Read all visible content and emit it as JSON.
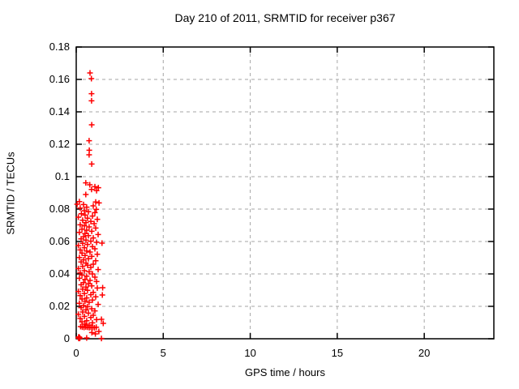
{
  "chart_data": {
    "type": "scatter",
    "title": "Day 210 of 2011, SRMTID for receiver p367",
    "xlabel": "GPS time / hours",
    "ylabel": "SRMTID / TECUs",
    "xlim": [
      0,
      24
    ],
    "ylim": [
      0,
      0.18
    ],
    "xticks": [
      {
        "v": 0,
        "label": "0"
      },
      {
        "v": 5,
        "label": "5"
      },
      {
        "v": 10,
        "label": "10"
      },
      {
        "v": 15,
        "label": "15"
      },
      {
        "v": 20,
        "label": "20"
      }
    ],
    "yticks": [
      {
        "v": 0,
        "label": "0"
      },
      {
        "v": 0.02,
        "label": "0.02"
      },
      {
        "v": 0.04,
        "label": "0.04"
      },
      {
        "v": 0.06,
        "label": "0.06"
      },
      {
        "v": 0.08,
        "label": "0.08"
      },
      {
        "v": 0.1,
        "label": "0.1"
      },
      {
        "v": 0.12,
        "label": "0.12"
      },
      {
        "v": 0.14,
        "label": "0.14"
      },
      {
        "v": 0.16,
        "label": "0.16"
      },
      {
        "v": 0.18,
        "label": "0.18"
      }
    ],
    "grid": "dashed, on major ticks",
    "legend": "none",
    "marker": "plus",
    "colors": {
      "marker": "#ff0000",
      "grid": "#a6a6a6",
      "frame": "#000000",
      "text": "#000000",
      "background": "#ffffff"
    },
    "points": [
      [
        0.79,
        0.164
      ],
      [
        0.87,
        0.1605
      ],
      [
        0.88,
        0.1512
      ],
      [
        0.88,
        0.1468
      ],
      [
        0.89,
        0.132
      ],
      [
        0.74,
        0.1222
      ],
      [
        0.75,
        0.1163
      ],
      [
        0.74,
        0.1135
      ],
      [
        0.89,
        0.1078
      ],
      [
        0.55,
        0.0962
      ],
      [
        0.78,
        0.095
      ],
      [
        1.07,
        0.0938
      ],
      [
        1.27,
        0.0932
      ],
      [
        0.88,
        0.0921
      ],
      [
        1.17,
        0.0914
      ],
      [
        0.55,
        0.089
      ],
      [
        0.18,
        0.0846
      ],
      [
        1.12,
        0.0844
      ],
      [
        1.31,
        0.0838
      ],
      [
        0.05,
        0.083
      ],
      [
        0.42,
        0.0828
      ],
      [
        0.98,
        0.082
      ],
      [
        0.6,
        0.0812
      ],
      [
        0.23,
        0.0806
      ],
      [
        1.15,
        0.0798
      ],
      [
        0.47,
        0.079
      ],
      [
        0.7,
        0.0784
      ],
      [
        1.07,
        0.0778
      ],
      [
        0.3,
        0.0771
      ],
      [
        0.51,
        0.0763
      ],
      [
        0.93,
        0.0757
      ],
      [
        0.12,
        0.075
      ],
      [
        0.65,
        0.0744
      ],
      [
        1.21,
        0.0737
      ],
      [
        0.37,
        0.0731
      ],
      [
        0.84,
        0.0724
      ],
      [
        0.56,
        0.0717
      ],
      [
        1.03,
        0.071
      ],
      [
        0.23,
        0.0703
      ],
      [
        0.47,
        0.0697
      ],
      [
        0.74,
        0.069
      ],
      [
        1.12,
        0.0683
      ],
      [
        0.33,
        0.0676
      ],
      [
        0.6,
        0.067
      ],
      [
        0.89,
        0.0663
      ],
      [
        0.18,
        0.0656
      ],
      [
        0.51,
        0.0649
      ],
      [
        1.26,
        0.0643
      ],
      [
        0.7,
        0.0636
      ],
      [
        0.42,
        0.0629
      ],
      [
        0.98,
        0.0622
      ],
      [
        0.28,
        0.0616
      ],
      [
        0.56,
        0.0609
      ],
      [
        0.84,
        0.0602
      ],
      [
        1.17,
        0.0595
      ],
      [
        0.37,
        0.0589
      ],
      [
        0.65,
        0.0582
      ],
      [
        0.12,
        0.0575
      ],
      [
        0.93,
        0.0568
      ],
      [
        0.47,
        0.0562
      ],
      [
        1.07,
        0.0555
      ],
      [
        0.23,
        0.0548
      ],
      [
        0.6,
        0.0541
      ],
      [
        0.79,
        0.0535
      ],
      [
        0.33,
        0.0528
      ],
      [
        1.21,
        0.0521
      ],
      [
        0.51,
        0.0514
      ],
      [
        0.89,
        0.0508
      ],
      [
        0.18,
        0.0501
      ],
      [
        0.7,
        0.0494
      ],
      [
        0.42,
        0.0487
      ],
      [
        1.12,
        0.0481
      ],
      [
        0.28,
        0.0474
      ],
      [
        0.56,
        0.0467
      ],
      [
        0.98,
        0.046
      ],
      [
        0.65,
        0.0454
      ],
      [
        0.37,
        0.0447
      ],
      [
        0.84,
        0.044
      ],
      [
        0.12,
        0.0433
      ],
      [
        1.26,
        0.0427
      ],
      [
        0.47,
        0.042
      ],
      [
        0.74,
        0.0413
      ],
      [
        0.23,
        0.0407
      ],
      [
        0.93,
        0.04
      ],
      [
        0.33,
        0.0393
      ],
      [
        0.6,
        0.0386
      ],
      [
        1.07,
        0.038
      ],
      [
        0.18,
        0.0373
      ],
      [
        0.51,
        0.0366
      ],
      [
        0.79,
        0.036
      ],
      [
        1.17,
        0.0353
      ],
      [
        0.42,
        0.0346
      ],
      [
        0.7,
        0.0339
      ],
      [
        0.28,
        0.0333
      ],
      [
        0.89,
        0.0326
      ],
      [
        0.56,
        0.0319
      ],
      [
        1.21,
        0.0313
      ],
      [
        0.37,
        0.0306
      ],
      [
        0.65,
        0.0299
      ],
      [
        0.12,
        0.0292
      ],
      [
        0.98,
        0.0286
      ],
      [
        0.47,
        0.0279
      ],
      [
        0.84,
        0.0272
      ],
      [
        0.23,
        0.0266
      ],
      [
        1.12,
        0.0259
      ],
      [
        0.6,
        0.0252
      ],
      [
        0.33,
        0.0245
      ],
      [
        0.93,
        0.0239
      ],
      [
        0.51,
        0.0232
      ],
      [
        0.74,
        0.0225
      ],
      [
        0.18,
        0.0219
      ],
      [
        1.26,
        0.0212
      ],
      [
        0.42,
        0.0205
      ],
      [
        0.65,
        0.0198
      ],
      [
        0.28,
        0.0192
      ],
      [
        0.89,
        0.0185
      ],
      [
        0.56,
        0.0178
      ],
      [
        1.07,
        0.0172
      ],
      [
        0.37,
        0.0165
      ],
      [
        0.7,
        0.0158
      ],
      [
        0.12,
        0.0151
      ],
      [
        0.98,
        0.0145
      ],
      [
        0.47,
        0.0138
      ],
      [
        0.84,
        0.0131
      ],
      [
        0.23,
        0.0125
      ],
      [
        1.17,
        0.0118
      ],
      [
        0.6,
        0.0111
      ],
      [
        0.33,
        0.0104
      ],
      [
        0.93,
        0.0098
      ],
      [
        0.51,
        0.0091
      ],
      [
        0.74,
        0.0084
      ],
      [
        1.48,
        0.059
      ],
      [
        1.52,
        0.0315
      ],
      [
        1.45,
        0.012
      ],
      [
        1.55,
        0.0095
      ],
      [
        1.5,
        0.027
      ],
      [
        0.25,
        0.0075
      ],
      [
        0.35,
        0.0072
      ],
      [
        0.45,
        0.007
      ],
      [
        0.55,
        0.0073
      ],
      [
        0.65,
        0.0071
      ],
      [
        0.75,
        0.0069
      ],
      [
        0.85,
        0.0072
      ],
      [
        0.95,
        0.007
      ],
      [
        1.05,
        0.0068
      ],
      [
        1.15,
        0.0071
      ],
      [
        1.3,
        0.0045
      ],
      [
        0.9,
        0.0038
      ],
      [
        1.1,
        0.003
      ],
      [
        0.6,
        0.0005
      ],
      [
        1.45,
        0.0002
      ],
      [
        0.13,
        0.0005
      ],
      [
        0.16,
        0.0002
      ],
      [
        0.19,
        0.0008
      ],
      [
        0.15,
        0.0012
      ],
      [
        0.21,
        0.0003
      ]
    ]
  }
}
